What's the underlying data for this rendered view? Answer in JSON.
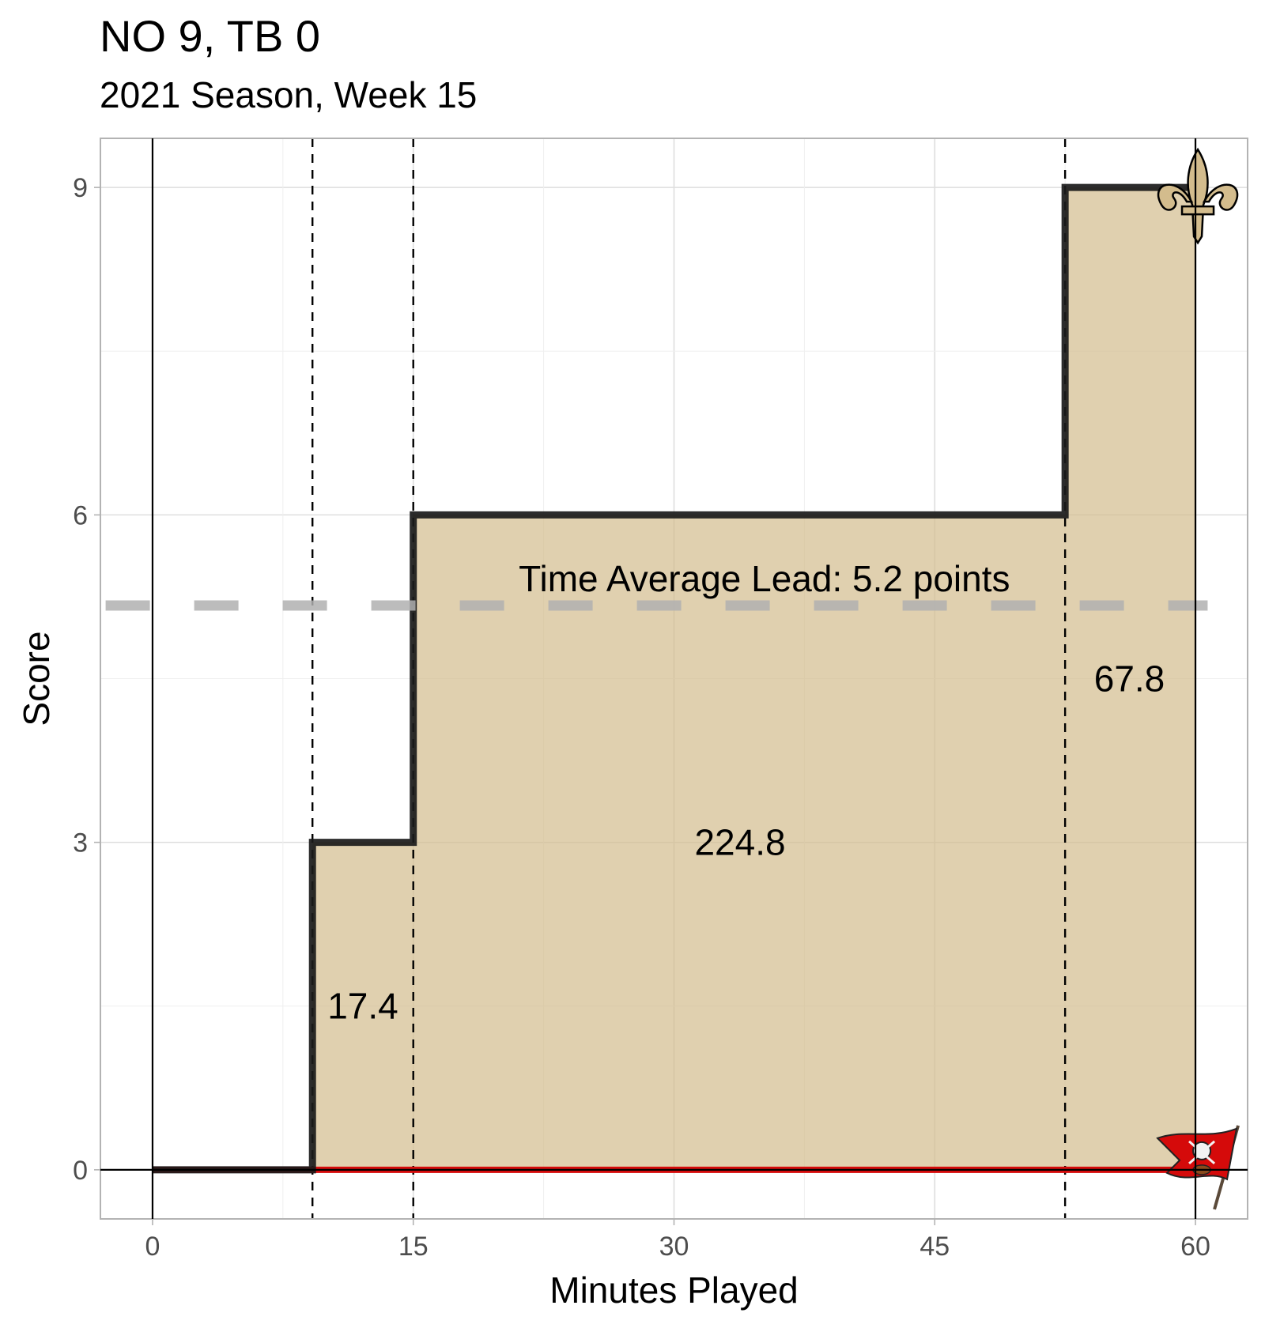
{
  "title": "NO 9, TB 0",
  "subtitle": "2021 Season, Week 15",
  "chart_data": {
    "type": "step-area",
    "xlabel": "Minutes Played",
    "ylabel": "Score",
    "xlim": [
      -3,
      63
    ],
    "ylim": [
      -0.45,
      9.45
    ],
    "xticks": [
      0,
      15,
      30,
      45,
      60
    ],
    "yticks": [
      0,
      3,
      6,
      9
    ],
    "grid": true,
    "series": [
      {
        "team": "NO",
        "color": "#1a1a1a",
        "fill": "#D3BC8D",
        "x": [
          0,
          9.2,
          15,
          52.5,
          60
        ],
        "y": [
          0,
          3,
          6,
          9,
          9
        ]
      },
      {
        "team": "TB",
        "color": "#D50A0A",
        "x": [
          0,
          60
        ],
        "y": [
          0,
          0
        ]
      }
    ],
    "score_change_minutes": [
      9.2,
      15,
      52.5
    ],
    "average_lead": 5.17,
    "average_lead_label": "Time Average Lead: 5.2 points",
    "area_labels": [
      {
        "text": "17.4",
        "x": 12.1,
        "y": 1.5
      },
      {
        "text": "224.8",
        "x": 33.8,
        "y": 3.0
      },
      {
        "text": "67.8",
        "x": 56.2,
        "y": 4.5
      }
    ],
    "logos": [
      {
        "team": "NO",
        "icon": "fleur-de-lis-icon",
        "x": 60,
        "y": 9,
        "color": "#D3BC8D"
      },
      {
        "team": "TB",
        "icon": "pirate-flag-icon",
        "x": 60,
        "y": 0,
        "color": "#D50A0A"
      }
    ]
  }
}
